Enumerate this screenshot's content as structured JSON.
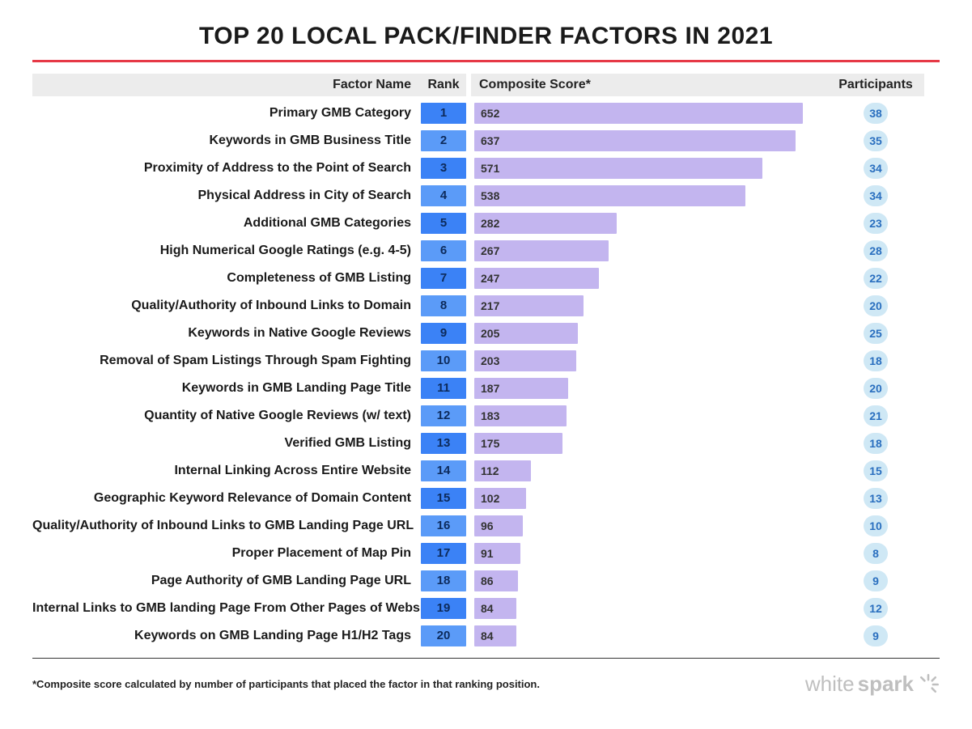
{
  "title": "TOP 20 LOCAL PACK/FINDER FACTORS IN 2021",
  "columns": {
    "name": "Factor Name",
    "rank": "Rank",
    "score": "Composite Score*",
    "participants": "Participants"
  },
  "chart": {
    "type": "bar",
    "score_max": 700,
    "bar_color": "#c3b5ef",
    "rank_bg_even": "#3b82f6",
    "rank_bg_odd": "#5b9bf8",
    "participant_pill_bg": "#cfe8f5",
    "participant_text_color": "#2a6fbf",
    "header_bg": "#ececec",
    "accent_rule_color": "#e63946",
    "rows": [
      {
        "name": "Primary GMB Category",
        "rank": 1,
        "score": 652,
        "participants": 38
      },
      {
        "name": "Keywords in GMB Business Title",
        "rank": 2,
        "score": 637,
        "participants": 35
      },
      {
        "name": "Proximity of Address to the Point of Search",
        "rank": 3,
        "score": 571,
        "participants": 34
      },
      {
        "name": "Physical Address in City of Search",
        "rank": 4,
        "score": 538,
        "participants": 34
      },
      {
        "name": "Additional GMB Categories",
        "rank": 5,
        "score": 282,
        "participants": 23
      },
      {
        "name": "High Numerical Google Ratings (e.g. 4-5)",
        "rank": 6,
        "score": 267,
        "participants": 28
      },
      {
        "name": "Completeness of GMB Listing",
        "rank": 7,
        "score": 247,
        "participants": 22
      },
      {
        "name": "Quality/Authority of Inbound Links to Domain",
        "rank": 8,
        "score": 217,
        "participants": 20
      },
      {
        "name": "Keywords in Native Google Reviews",
        "rank": 9,
        "score": 205,
        "participants": 25
      },
      {
        "name": "Removal of Spam Listings Through Spam Fighting",
        "rank": 10,
        "score": 203,
        "participants": 18
      },
      {
        "name": "Keywords in GMB Landing Page Title",
        "rank": 11,
        "score": 187,
        "participants": 20
      },
      {
        "name": "Quantity of Native Google Reviews (w/ text)",
        "rank": 12,
        "score": 183,
        "participants": 21
      },
      {
        "name": "Verified GMB Listing",
        "rank": 13,
        "score": 175,
        "participants": 18
      },
      {
        "name": "Internal Linking Across Entire Website",
        "rank": 14,
        "score": 112,
        "participants": 15
      },
      {
        "name": "Geographic Keyword Relevance of Domain Content",
        "rank": 15,
        "score": 102,
        "participants": 13
      },
      {
        "name": "Quality/Authority of Inbound Links to GMB Landing Page URL",
        "rank": 16,
        "score": 96,
        "participants": 10
      },
      {
        "name": "Proper Placement of Map Pin",
        "rank": 17,
        "score": 91,
        "participants": 8
      },
      {
        "name": "Page Authority of GMB Landing Page URL",
        "rank": 18,
        "score": 86,
        "participants": 9
      },
      {
        "name": "Internal Links to GMB landing Page From Other Pages of Website",
        "rank": 19,
        "score": 84,
        "participants": 12
      },
      {
        "name": "Keywords on GMB Landing Page H1/H2 Tags",
        "rank": 20,
        "score": 84,
        "participants": 9
      }
    ]
  },
  "footnote": "*Composite score calculated by number of participants that placed the factor in that ranking position.",
  "logo": {
    "part1": "white",
    "part2": "spark"
  }
}
